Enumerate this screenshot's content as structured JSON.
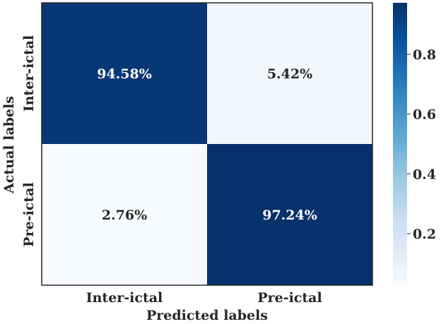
{
  "chart_data": {
    "type": "heatmap",
    "title": "",
    "xlabel": "Predicted labels",
    "ylabel": "Actual labels",
    "x_categories": [
      "Inter-ictal",
      "Pre-ictal"
    ],
    "y_categories": [
      "Inter-ictal",
      "Pre-ictal"
    ],
    "values": [
      [
        0.9458,
        0.0542
      ],
      [
        0.0276,
        0.9724
      ]
    ],
    "cell_labels": [
      [
        "94.58%",
        "5.42%"
      ],
      [
        "2.76%",
        "97.24%"
      ]
    ],
    "colormap": "Blues",
    "colorbar": {
      "range": [
        0.0276,
        0.9724
      ],
      "ticks": [
        0.2,
        0.4,
        0.6,
        0.8
      ],
      "tick_labels": [
        "0.2",
        "0.4",
        "0.6",
        "0.8"
      ]
    },
    "colors": {
      "low": "#f7fbff",
      "high": "#08306b",
      "text_dark": "#262626",
      "text_light": "#ffffff"
    }
  }
}
